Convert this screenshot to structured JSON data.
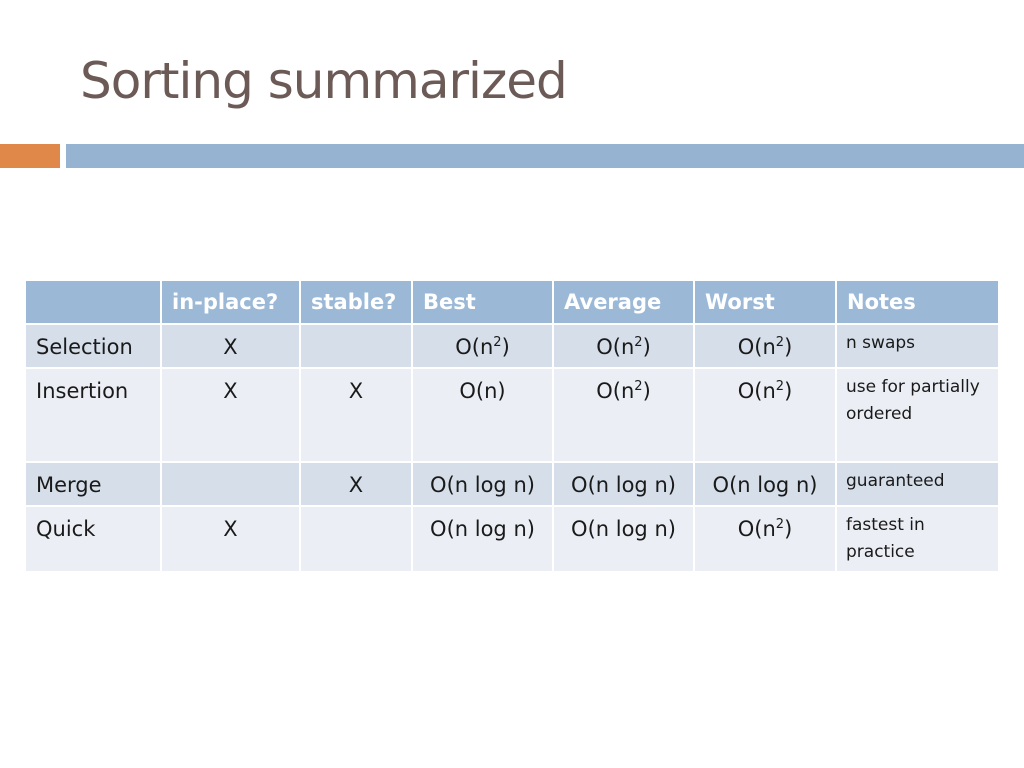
{
  "slide": {
    "title": "Sorting summarized"
  },
  "table": {
    "headers": [
      "",
      "in-place?",
      "stable?",
      "Best",
      "Average",
      "Worst",
      "Notes"
    ],
    "rows": [
      {
        "name": "Selection",
        "in_place": "X",
        "stable": "",
        "best": {
          "base": "O(n",
          "exp": "2",
          "tail": ")"
        },
        "average": {
          "base": "O(n",
          "exp": "2",
          "tail": ")"
        },
        "worst": {
          "base": "O(n",
          "exp": "2",
          "tail": ")"
        },
        "notes": "n swaps"
      },
      {
        "name": "Insertion",
        "in_place": "X",
        "stable": "X",
        "best": {
          "base": "O(n)",
          "exp": "",
          "tail": ""
        },
        "average": {
          "base": "O(n",
          "exp": "2",
          "tail": ")"
        },
        "worst": {
          "base": "O(n",
          "exp": "2",
          "tail": ")"
        },
        "notes": "use for partially ordered"
      },
      {
        "name": "Merge",
        "in_place": "",
        "stable": "X",
        "best": {
          "base": "O(n log n)",
          "exp": "",
          "tail": ""
        },
        "average": {
          "base": "O(n log n)",
          "exp": "",
          "tail": ""
        },
        "worst": {
          "base": "O(n log n)",
          "exp": "",
          "tail": ""
        },
        "notes": "guaranteed"
      },
      {
        "name": "Quick",
        "in_place": "X",
        "stable": "",
        "best": {
          "base": "O(n log n)",
          "exp": "",
          "tail": ""
        },
        "average": {
          "base": "O(n log n)",
          "exp": "",
          "tail": ""
        },
        "worst": {
          "base": "O(n",
          "exp": "2",
          "tail": ")"
        },
        "notes": "fastest in practice"
      }
    ]
  },
  "colors": {
    "title": "#6b5a55",
    "accent_orange": "#e0874a",
    "accent_blue": "#96b4d1",
    "header_bg": "#9bb9d6",
    "row_odd_bg": "#d5dee9",
    "row_even_bg": "#ebeff5"
  }
}
